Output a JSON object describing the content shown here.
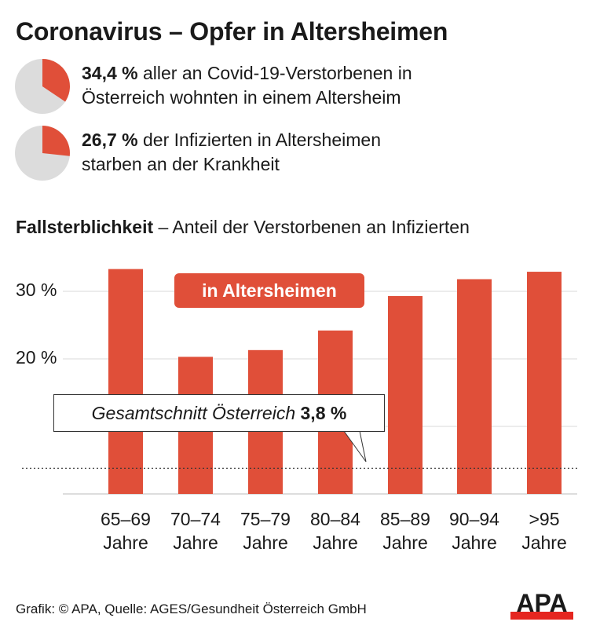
{
  "title": "Coronavirus – Opfer in Altersheimen",
  "stats": [
    {
      "value": "34,4 %",
      "line1": " aller an Covid-19-Verstorbenen in",
      "line2": "Österreich wohnten in einem Altersheim",
      "fraction": 0.344
    },
    {
      "value": "26,7 %",
      "line1": " der Infizierten in Altersheimen",
      "line2": "starben an der Krankheit",
      "fraction": 0.267
    }
  ],
  "colors": {
    "accent": "#e04f39",
    "pie_bg": "#dcdcdc",
    "grid": "#d8d8d8"
  },
  "chart_data": {
    "type": "bar",
    "title_bold": "Fallsterblichkeit",
    "title_rest": " – Anteil der Verstorbenen an Infizierten",
    "series_label": "in Altersheimen",
    "categories_top": [
      "65–69",
      "70–74",
      "75–79",
      "80–84",
      "85–89",
      "90–94",
      ">95"
    ],
    "category_unit": "Jahre",
    "values": [
      33.3,
      20.3,
      21.3,
      24.2,
      29.3,
      31.8,
      32.9
    ],
    "ylim": [
      0,
      35
    ],
    "yticks": [
      {
        "v": 20,
        "label": "20 %"
      },
      {
        "v": 30,
        "label": "30 %"
      }
    ],
    "gridlines": [
      0,
      10,
      20,
      30
    ],
    "reference": {
      "value": 3.8,
      "label": "Gesamtschnitt Österreich ",
      "value_label": "3,8 %"
    }
  },
  "footer": "Grafik: © APA, Quelle: AGES/Gesundheit Österreich GmbH",
  "logo": "APA"
}
